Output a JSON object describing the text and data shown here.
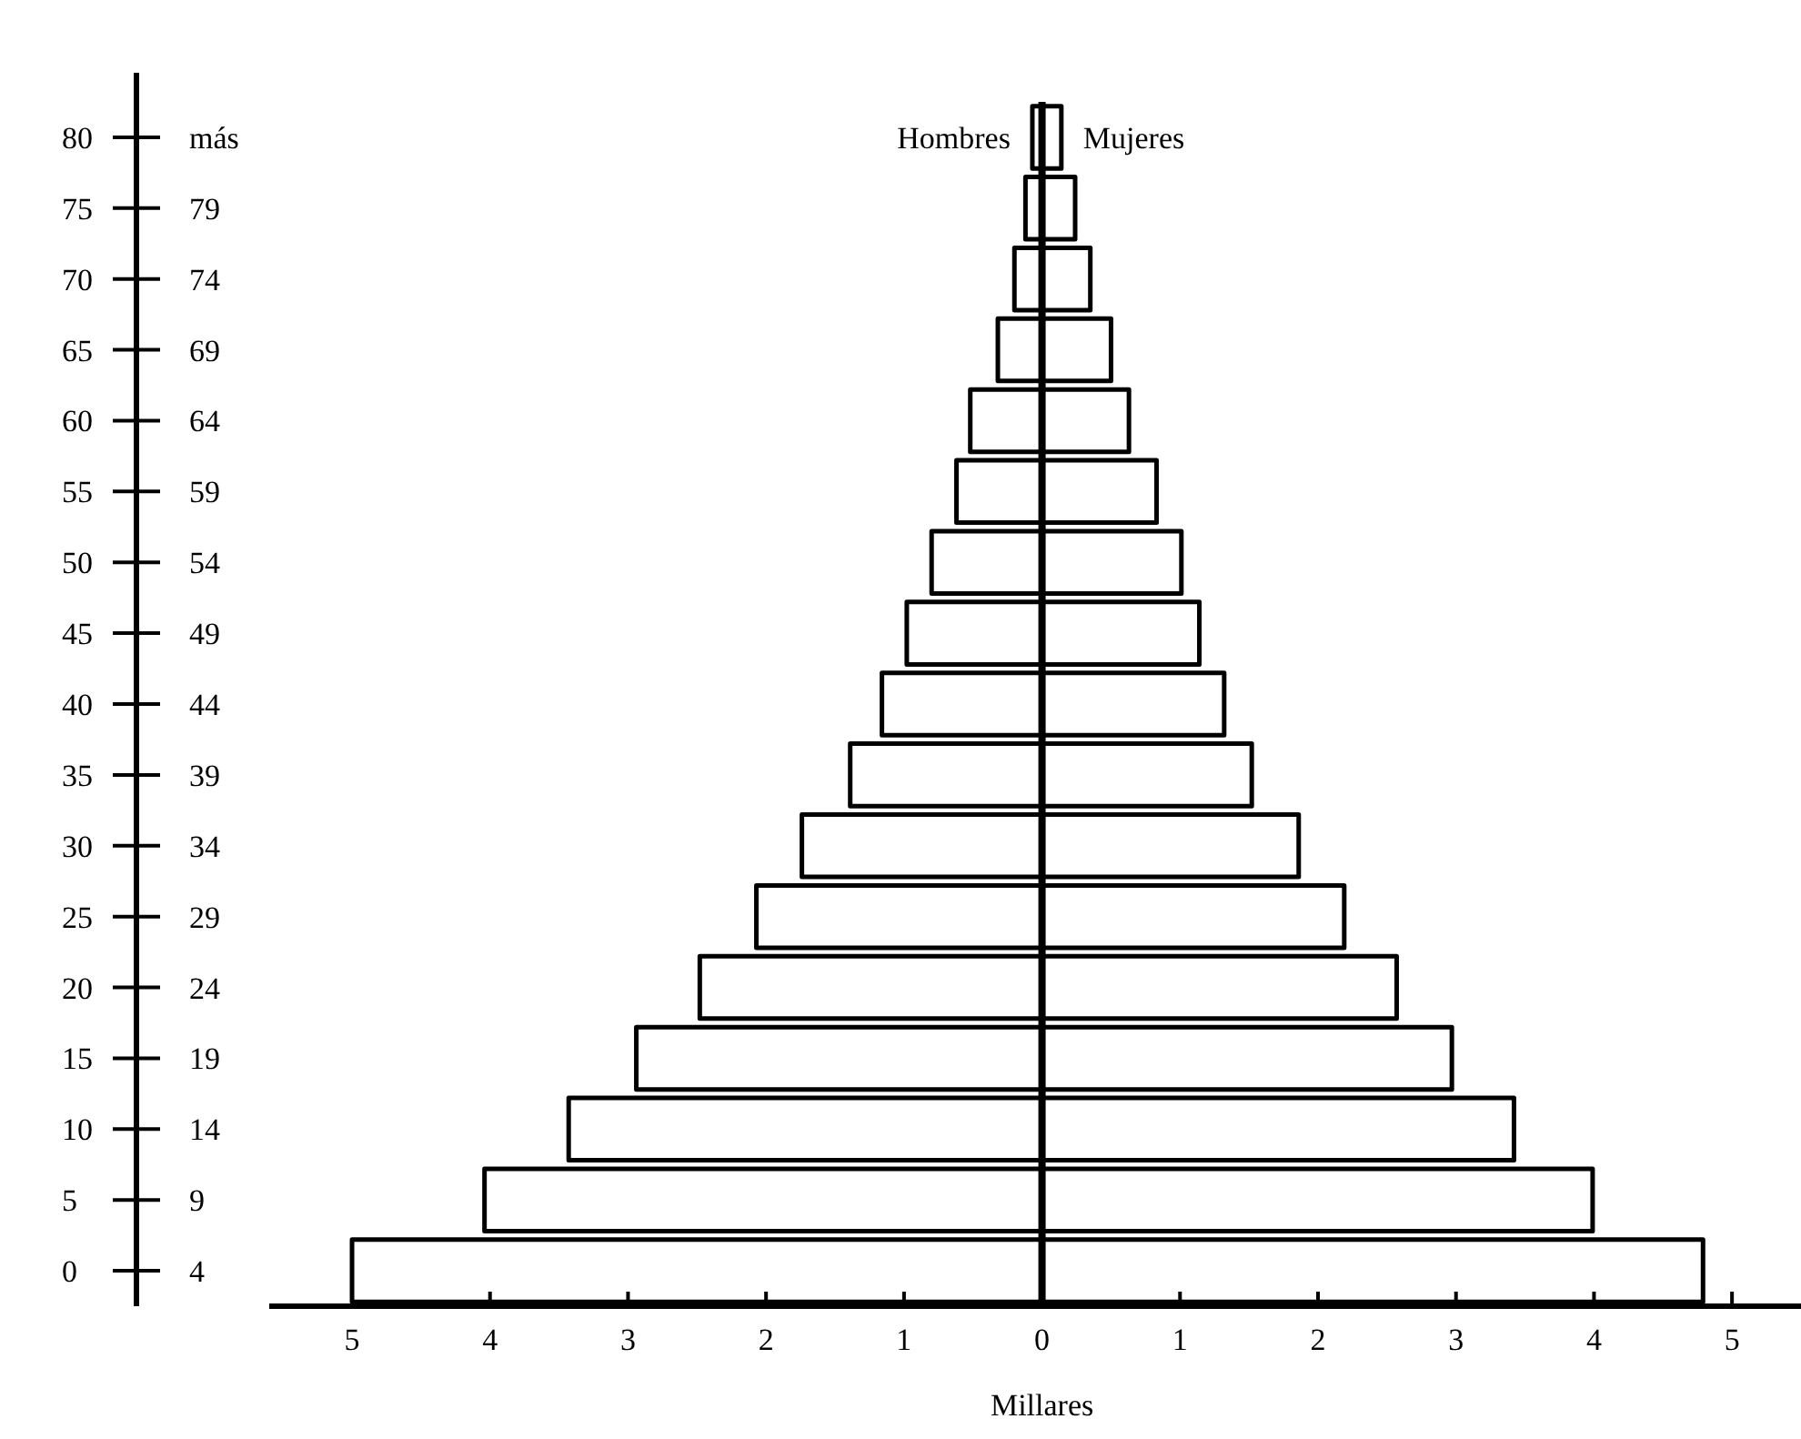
{
  "chart_data": {
    "type": "bar",
    "orientation": "horizontal",
    "xlabel": "Millares",
    "categories": [
      "80 más",
      "75 79",
      "70 74",
      "65 69",
      "60 64",
      "55 59",
      "50 54",
      "45 49",
      "40 44",
      "35 39",
      "30 34",
      "25 29",
      "20 24",
      "15 19",
      "10 14",
      "5 9",
      "0 4"
    ],
    "series": [
      {
        "name": "Hombres",
        "color": "#000000",
        "values": [
          -0.07,
          -0.12,
          -0.2,
          -0.32,
          -0.52,
          -0.62,
          -0.8,
          -0.98,
          -1.16,
          -1.39,
          -1.74,
          -2.07,
          -2.48,
          -2.94,
          -3.43,
          -4.04,
          -5.0
        ]
      },
      {
        "name": "Mujeres",
        "color": "#000000",
        "values": [
          0.14,
          0.24,
          0.35,
          0.5,
          0.63,
          0.83,
          1.01,
          1.14,
          1.32,
          1.52,
          1.86,
          2.19,
          2.57,
          2.97,
          3.42,
          3.99,
          4.79
        ]
      }
    ],
    "xlim": [
      -5.6,
      5.5
    ],
    "xticks": [
      {
        "value": -5,
        "label": "5"
      },
      {
        "value": -4,
        "label": "4"
      },
      {
        "value": -3,
        "label": "3"
      },
      {
        "value": -2,
        "label": "2"
      },
      {
        "value": -1,
        "label": "1"
      },
      0,
      1,
      2,
      3,
      4,
      5
    ],
    "ref_lines": [
      {
        "axis": "x",
        "value": 0,
        "color": "#000000"
      }
    ]
  }
}
